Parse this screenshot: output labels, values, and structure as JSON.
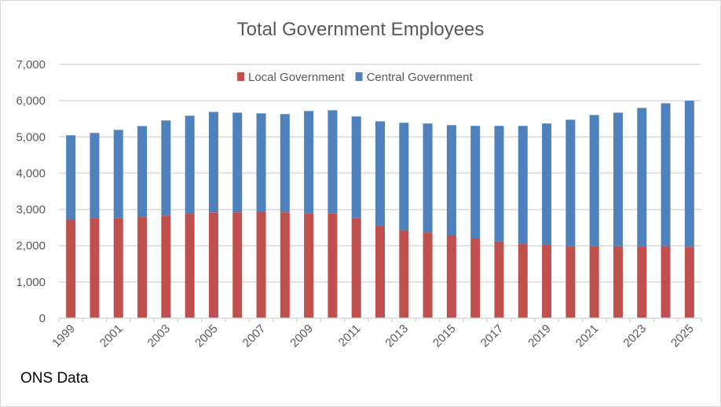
{
  "chart_data": {
    "type": "bar",
    "stacked": true,
    "title": "Total Government Employees",
    "xlabel": "",
    "ylabel": "",
    "ylim": [
      0,
      7000
    ],
    "yticks": [
      0,
      1000,
      2000,
      3000,
      4000,
      5000,
      6000,
      7000
    ],
    "ytick_labels": [
      "0",
      "1,000",
      "2,000",
      "3,000",
      "4,000",
      "5,000",
      "6,000",
      "7,000"
    ],
    "grid": true,
    "legend_position": "top",
    "categories": [
      1999,
      2000,
      2001,
      2002,
      2003,
      2004,
      2005,
      2006,
      2007,
      2008,
      2009,
      2010,
      2011,
      2012,
      2013,
      2014,
      2015,
      2016,
      2017,
      2018,
      2019,
      2020,
      2021,
      2022,
      2023,
      2024,
      2025
    ],
    "xtick_labels": [
      "1999",
      "2001",
      "2003",
      "2005",
      "2007",
      "2009",
      "2011",
      "2013",
      "2015",
      "2017",
      "2019",
      "2021",
      "2023",
      "2025"
    ],
    "series": [
      {
        "name": "Local Government",
        "color": "#c0504d",
        "values": [
          2730,
          2770,
          2770,
          2790,
          2835,
          2880,
          2920,
          2920,
          2945,
          2920,
          2900,
          2900,
          2770,
          2555,
          2425,
          2360,
          2275,
          2210,
          2120,
          2055,
          2015,
          1990,
          1990,
          1990,
          1990,
          1990,
          1970
        ]
      },
      {
        "name": "Central Government",
        "color": "#4f81bd",
        "values": [
          2315,
          2340,
          2425,
          2510,
          2620,
          2705,
          2770,
          2750,
          2705,
          2710,
          2815,
          2835,
          2795,
          2875,
          2965,
          3010,
          3050,
          3095,
          3185,
          3250,
          3355,
          3485,
          3615,
          3680,
          3810,
          3940,
          4030
        ]
      }
    ]
  },
  "footer": {
    "source": "ONS Data"
  }
}
